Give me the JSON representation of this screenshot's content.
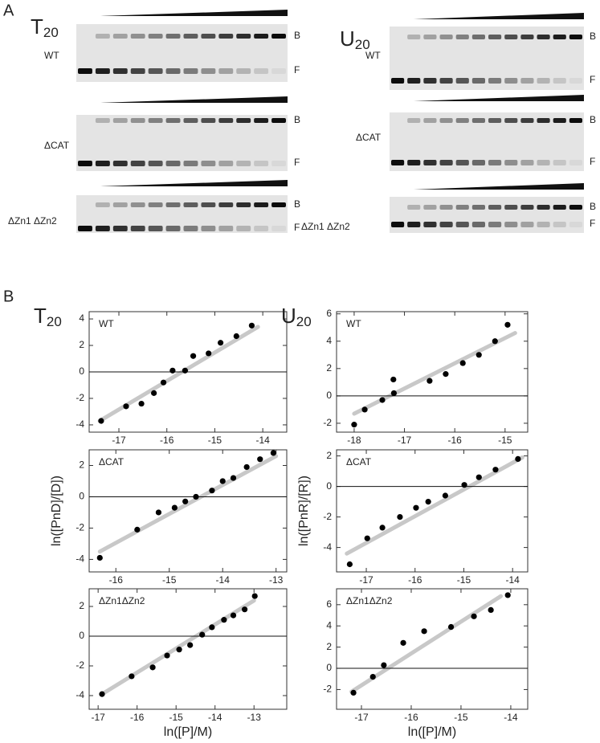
{
  "panels": {
    "a": "A",
    "b": "B"
  },
  "gels": [
    {
      "title": "T",
      "title_sub": "20",
      "blots": [
        {
          "label": "WT",
          "bound": "B",
          "free": "F"
        },
        {
          "label": "ΔCAT",
          "bound": "B",
          "free": "F"
        },
        {
          "label": "ΔZn1 ΔZn2",
          "bound": "B",
          "free": "F"
        }
      ]
    },
    {
      "title": "U",
      "title_sub": "20",
      "blots": [
        {
          "label": "WT",
          "bound": "B",
          "free": "F"
        },
        {
          "label": "ΔCAT",
          "bound": "B",
          "free": "F"
        },
        {
          "label": "ΔZn1 ΔZn2",
          "bound": "B",
          "free": "F"
        }
      ]
    }
  ],
  "chart_data": [
    {
      "type": "scatter",
      "title": "T",
      "title_sub": "20",
      "annotation": "WT",
      "x": [
        -17.37,
        -16.85,
        -16.53,
        -16.27,
        -16.07,
        -15.88,
        -15.62,
        -15.45,
        -15.13,
        -14.88,
        -14.55,
        -14.23
      ],
      "values": [
        -3.7,
        -2.6,
        -2.4,
        -1.6,
        -0.8,
        0.1,
        0.1,
        1.2,
        1.4,
        2.2,
        2.7,
        3.5
      ],
      "color": "#000000",
      "fit": {
        "x": [
          -17.4,
          -14.1
        ],
        "values": [
          -3.7,
          3.4
        ],
        "color": "#c8c8c8"
      },
      "reference_line": 0,
      "xlim": [
        -17.62,
        -13.5
      ],
      "ylim": [
        -4.55,
        4.55
      ],
      "xticks": [
        -17,
        -16,
        -15,
        -14
      ],
      "yticks": [
        -4,
        -2,
        0,
        2,
        4
      ]
    },
    {
      "type": "scatter",
      "annotation": "ΔCAT",
      "ylabel": "ln([PnD]/[D])",
      "x": [
        -16.3,
        -15.6,
        -15.2,
        -14.9,
        -14.7,
        -14.5,
        -14.2,
        -14.0,
        -13.8,
        -13.55,
        -13.3,
        -13.05
      ],
      "values": [
        -3.9,
        -2.1,
        -1.0,
        -0.7,
        -0.3,
        0.0,
        0.4,
        1.0,
        1.2,
        1.9,
        2.4,
        2.8
      ],
      "color": "#000000",
      "fit": {
        "x": [
          -16.3,
          -13.0
        ],
        "values": [
          -3.5,
          2.6
        ],
        "color": "#c8c8c8"
      },
      "reference_line": 0,
      "xlim": [
        -16.5,
        -12.8
      ],
      "ylim": [
        -4.8,
        3.0
      ],
      "xticks": [
        -16,
        -15,
        -14,
        -13
      ],
      "yticks": [
        -4,
        -2,
        0,
        2
      ]
    },
    {
      "type": "scatter",
      "annotation": "ΔZn1ΔZn2",
      "xlabel": "ln([P]/M)",
      "x": [
        -16.9,
        -16.14,
        -15.6,
        -15.23,
        -14.92,
        -14.64,
        -14.33,
        -14.08,
        -13.77,
        -13.53,
        -13.24,
        -12.98
      ],
      "values": [
        -3.9,
        -2.7,
        -2.1,
        -1.3,
        -0.9,
        -0.6,
        0.1,
        0.6,
        1.1,
        1.4,
        1.8,
        2.7
      ],
      "color": "#000000",
      "fit": {
        "x": [
          -16.9,
          -13.0
        ],
        "values": [
          -3.9,
          2.4
        ],
        "color": "#c8c8c8"
      },
      "reference_line": 0,
      "xlim": [
        -17.23,
        -12.16
      ],
      "ylim": [
        -4.92,
        3.19
      ],
      "xticks": [
        -17,
        -16,
        -15,
        -14,
        -13
      ],
      "yticks": [
        -4,
        -2,
        0,
        2
      ]
    },
    {
      "type": "scatter",
      "title": "U",
      "title_sub": "20",
      "annotation": "WT",
      "x": [
        -18.0,
        -17.79,
        -17.44,
        -17.22,
        -17.21,
        -16.5,
        -16.18,
        -15.84,
        -15.52,
        -15.2,
        -14.95
      ],
      "values": [
        -2.1,
        -1.0,
        -0.3,
        1.2,
        0.2,
        1.1,
        1.6,
        2.4,
        3.0,
        4.0,
        5.2
      ],
      "color": "#000000",
      "fit": {
        "x": [
          -18.0,
          -14.8
        ],
        "values": [
          -1.3,
          4.6
        ],
        "color": "#c8c8c8"
      },
      "reference_line": 0,
      "xlim": [
        -18.35,
        -14.55
      ],
      "ylim": [
        -2.65,
        6.16
      ],
      "xticks": [
        -18,
        -17,
        -16,
        -15
      ],
      "yticks": [
        -2,
        0,
        2,
        4,
        6
      ]
    },
    {
      "type": "scatter",
      "annotation": "ΔCAT",
      "ylabel": "ln([PnR]/[R])",
      "x": [
        -17.34,
        -16.98,
        -16.67,
        -16.31,
        -15.98,
        -15.73,
        -15.38,
        -14.99,
        -14.69,
        -14.35,
        -13.89
      ],
      "values": [
        -5.1,
        -3.4,
        -2.7,
        -2.0,
        -1.4,
        -1.0,
        -0.6,
        0.1,
        0.6,
        1.1,
        1.8
      ],
      "color": "#000000",
      "fit": {
        "x": [
          -17.4,
          -13.8
        ],
        "values": [
          -4.4,
          1.9
        ],
        "color": "#c8c8c8"
      },
      "reference_line": 0,
      "xlim": [
        -17.61,
        -13.69
      ],
      "ylim": [
        -5.6,
        2.4
      ],
      "xticks": [
        -17,
        -16,
        -15,
        -14
      ],
      "yticks": [
        -4,
        -2,
        0,
        2
      ]
    },
    {
      "type": "scatter",
      "annotation": "ΔZn1ΔZn2",
      "xlabel": "ln([P]/M)",
      "x": [
        -17.16,
        -16.77,
        -16.55,
        -16.16,
        -15.74,
        -15.2,
        -14.74,
        -14.4,
        -14.06
      ],
      "values": [
        -2.3,
        -0.8,
        0.3,
        2.4,
        3.5,
        3.9,
        4.9,
        5.5,
        6.9
      ],
      "color": "#000000",
      "fit": {
        "x": [
          -17.2,
          -14.2
        ],
        "values": [
          -2.2,
          6.8
        ],
        "color": "#c8c8c8"
      },
      "reference_line": 0,
      "xlim": [
        -17.5,
        -13.66
      ],
      "ylim": [
        -3.86,
        7.5
      ],
      "xticks": [
        -17,
        -16,
        -15,
        -14
      ],
      "yticks": [
        -2,
        0,
        2,
        4,
        6
      ]
    }
  ]
}
